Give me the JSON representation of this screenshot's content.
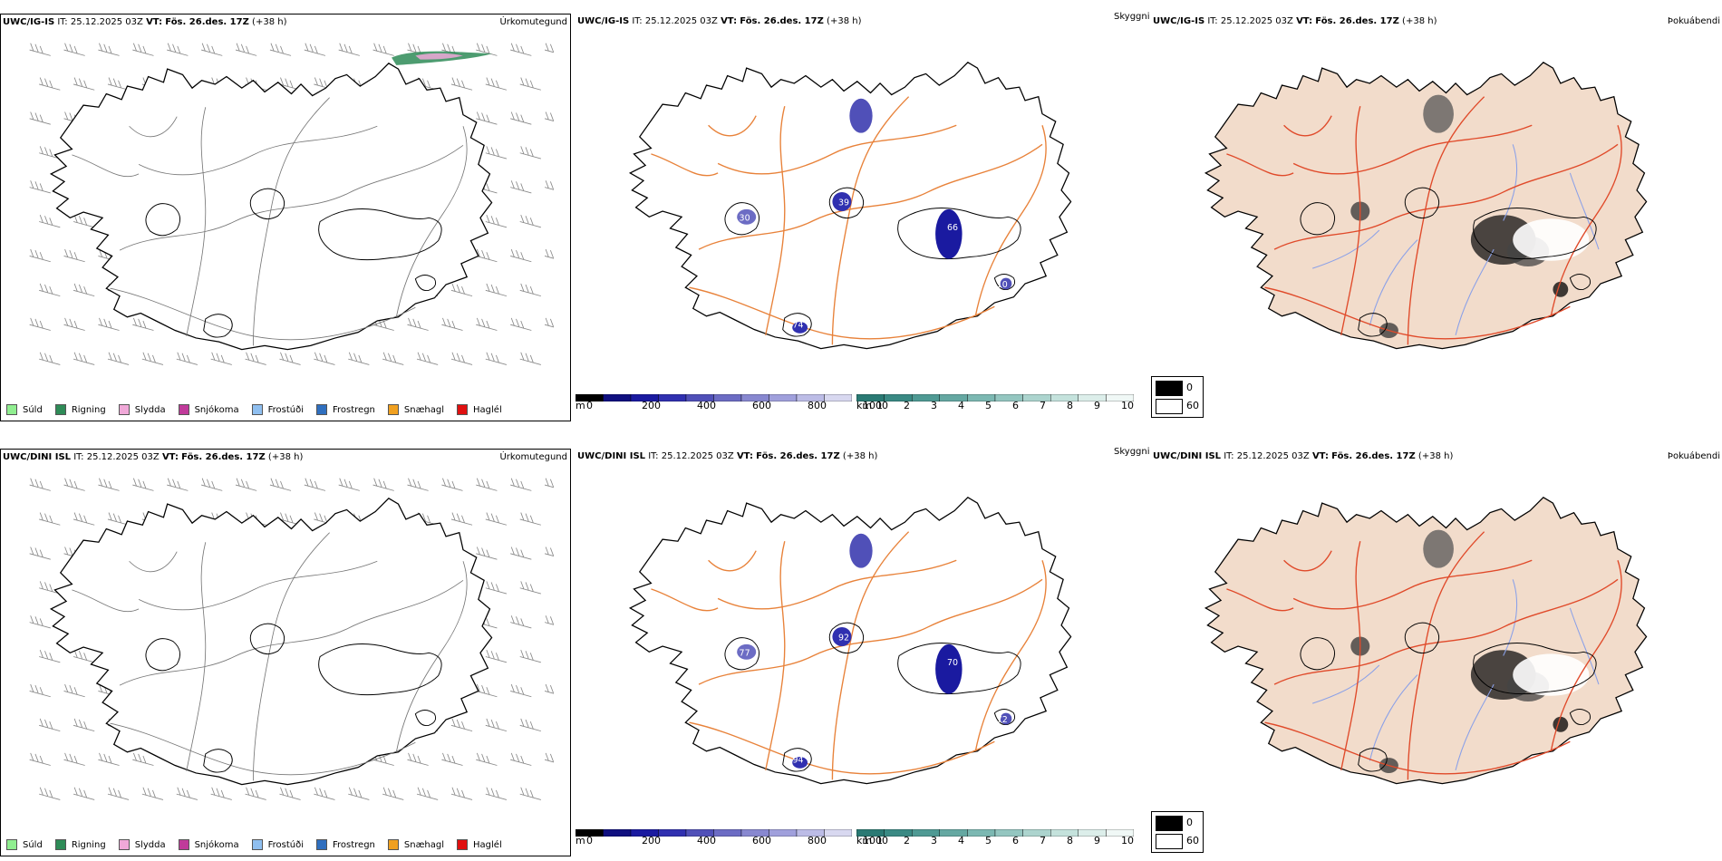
{
  "panels": [
    {
      "model": "UWC/IG-IS",
      "it_label": "IT:",
      "it_value": "25.12.2025 03Z",
      "vt_label": "VT:",
      "vt_value": "Fös. 26.des. 17Z",
      "lead": "(+38 h)",
      "title": "Úrkomutegund"
    },
    {
      "model": "UWC/IG-IS",
      "it_label": "IT:",
      "it_value": "25.12.2025 03Z",
      "vt_label": "VT:",
      "vt_value": "Fös. 26.des. 17Z",
      "lead": "(+38 h)",
      "title": "Skyggni"
    },
    {
      "model": "UWC/IG-IS",
      "it_label": "IT:",
      "it_value": "25.12.2025 03Z",
      "vt_label": "VT:",
      "vt_value": "Fös. 26.des. 17Z",
      "lead": "(+38 h)",
      "title": "Þokuábendi"
    },
    {
      "model": "UWC/DINI ISL",
      "it_label": "IT:",
      "it_value": "25.12.2025 03Z",
      "vt_label": "VT:",
      "vt_value": "Fös. 26.des. 17Z",
      "lead": "(+38 h)",
      "title": "Úrkomutegund"
    },
    {
      "model": "UWC/DINI ISL",
      "it_label": "IT:",
      "it_value": "25.12.2025 03Z",
      "vt_label": "VT:",
      "vt_value": "Fös. 26.des. 17Z",
      "lead": "(+38 h)",
      "title": "Skyggni"
    },
    {
      "model": "UWC/DINI ISL",
      "it_label": "IT:",
      "it_value": "25.12.2025 03Z",
      "vt_label": "VT:",
      "vt_value": "Fös. 26.des. 17Z",
      "lead": "(+38 h)",
      "title": "Þokuábendi"
    }
  ],
  "precip_legend": [
    {
      "label": "Súld",
      "color": "#90ee90"
    },
    {
      "label": "Rigning",
      "color": "#2e8b57"
    },
    {
      "label": "Slydda",
      "color": "#f0a8d8"
    },
    {
      "label": "Snjókoma",
      "color": "#c03a9a"
    },
    {
      "label": "Frostúði",
      "color": "#8fbff0"
    },
    {
      "label": "Frostregn",
      "color": "#2f6fbf"
    },
    {
      "label": "Snæhagl",
      "color": "#f0a020"
    },
    {
      "label": "Haglél",
      "color": "#e01010"
    }
  ],
  "elev_bar": {
    "unit": "m",
    "ticks": [
      "0",
      "200",
      "400",
      "600",
      "800",
      "1000"
    ],
    "colors": [
      "#000000",
      "#101080",
      "#1a1aa0",
      "#3030b0",
      "#5050b8",
      "#6c6cc4",
      "#8888d0",
      "#a0a0dc",
      "#bcbce6",
      "#d8d8f0"
    ]
  },
  "vis_bar": {
    "unit": "km",
    "ticks": [
      "1",
      "2",
      "3",
      "4",
      "5",
      "6",
      "7",
      "8",
      "9",
      "10"
    ],
    "colors": [
      "#2a7a74",
      "#3a8a84",
      "#4f9a94",
      "#65a8a2",
      "#7cb8b2",
      "#94c6c0",
      "#acd4ce",
      "#c4e2dc",
      "#dceeea",
      "#f0f8f6"
    ]
  },
  "fog_legend": {
    "labels": [
      "0",
      "60"
    ],
    "colors": [
      "#000000",
      "#ffffff"
    ]
  },
  "vis_labels_top": [
    "30",
    "39",
    "66",
    "74",
    "10"
  ],
  "vis_labels_bottom": [
    "77",
    "92",
    "70",
    "94",
    "72"
  ],
  "colors": {
    "land_fog": "#f2dccb",
    "road": "#e8823a",
    "road_red": "#e04a2a",
    "river": "#8aa0e8",
    "outline": "#000000",
    "wind": "#888888"
  }
}
